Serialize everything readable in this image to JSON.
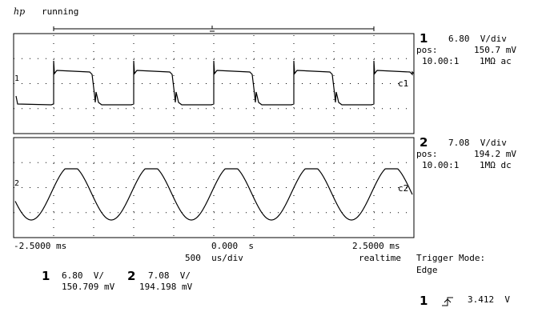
{
  "status": {
    "logo": "hp",
    "state": "running"
  },
  "channels": [
    {
      "number": "1",
      "scale": "6.80  V/div",
      "pos_label": "pos:",
      "pos": "150.7 mV",
      "probe": "10.00:1",
      "coupling": "1MΩ ac",
      "trace_label": "c1",
      "ground_marker": "1"
    },
    {
      "number": "2",
      "scale": "7.08  V/div",
      "pos_label": "pos:",
      "pos": "194.2 mV",
      "probe": "10.00:1",
      "coupling": "1MΩ dc",
      "trace_label": "c2",
      "ground_marker": "2"
    }
  ],
  "timebase": {
    "left": "-2.5000 ms",
    "center": "0.000  s",
    "right": "2.5000 ms",
    "scale": "500  us/div",
    "mode": "realtime"
  },
  "trigger": {
    "mode_label": "Trigger Mode:",
    "mode": "Edge",
    "source": "1",
    "level": "3.412  V"
  },
  "measurements": [
    {
      "channel": "1",
      "scale": "6.80  V/",
      "pos": "150.709 mV"
    },
    {
      "channel": "2",
      "scale": "7.08  V/",
      "pos": "194.198 mV"
    }
  ]
}
